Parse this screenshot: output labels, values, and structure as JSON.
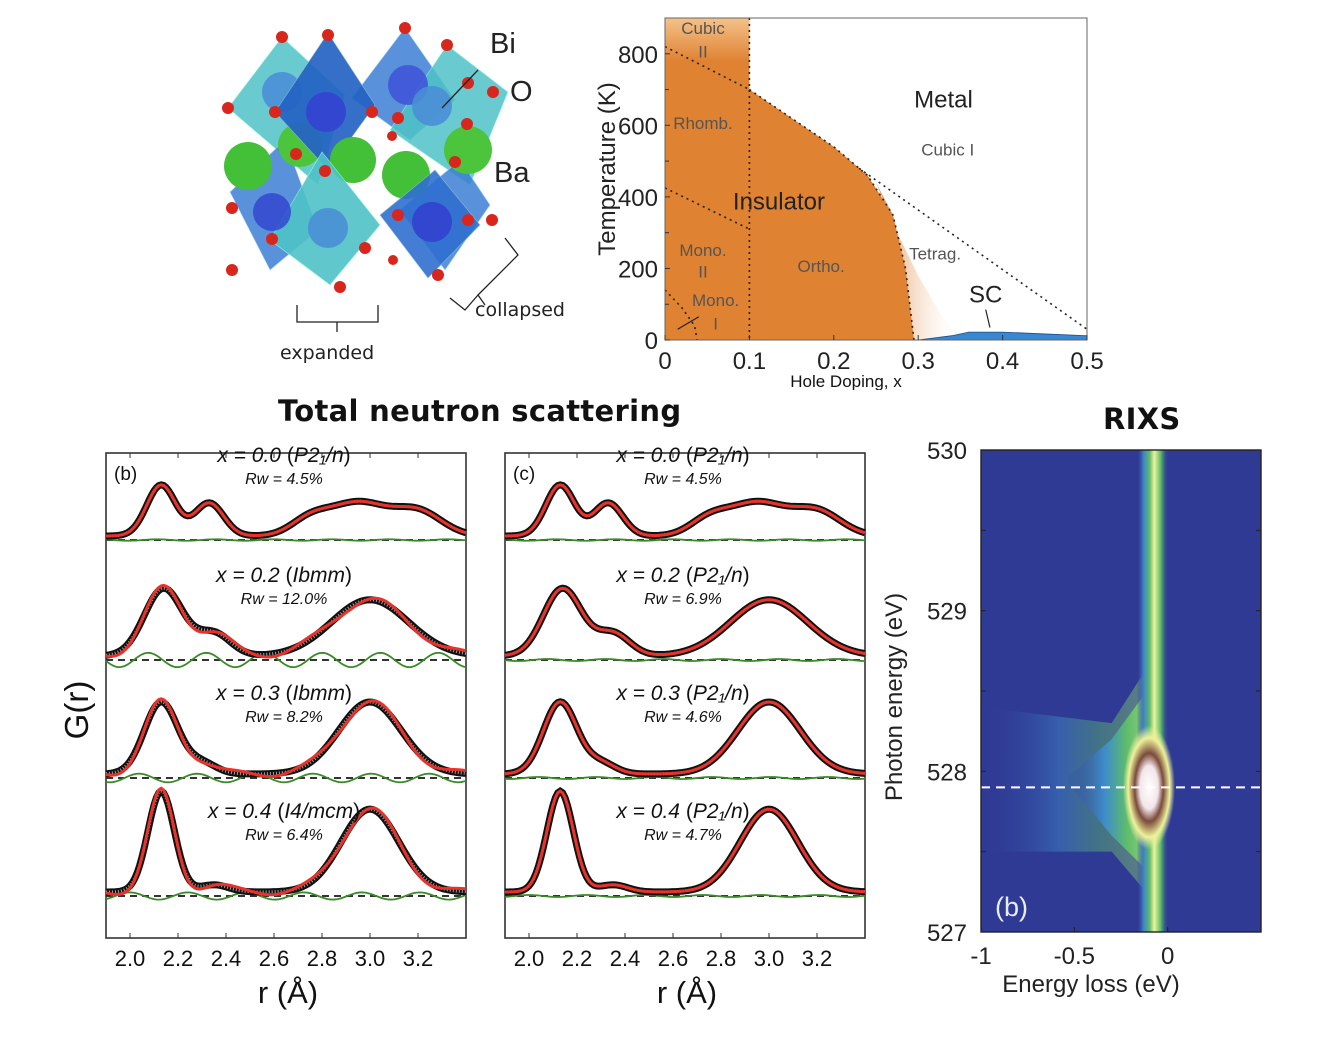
{
  "crystal": {
    "labels": {
      "bi": "Bi",
      "o": "O",
      "ba": "Ba",
      "expanded": "expanded",
      "collapsed": "collapsed"
    },
    "colors": {
      "oxygen": "#d8261c",
      "barium": "#4cc43c",
      "octa_expanded": "#4fc3c7",
      "octa_collapsed": "#2f6fd0",
      "bismuth": "#3f56d8"
    }
  },
  "chart_data": [
    {
      "id": "phase-diagram",
      "type": "area",
      "title": "",
      "xlabel": "Hole Doping, x",
      "ylabel": "Temperature (K)",
      "xlim": [
        0,
        0.5
      ],
      "ylim": [
        0,
        900
      ],
      "xticks": [
        0,
        0.1,
        0.2,
        0.3,
        0.4,
        0.5
      ],
      "xtick_labels": [
        "0",
        "0.1",
        "0.2",
        "0.3",
        "0.4",
        "0.5"
      ],
      "yticks": [
        0,
        200,
        400,
        600,
        800
      ],
      "ytick_labels": [
        "0",
        "200",
        "400",
        "600",
        "800"
      ],
      "regions": {
        "insulator_boundary": [
          [
            0,
            900
          ],
          [
            0.1,
            900
          ],
          [
            0.1,
            700
          ],
          [
            0.15,
            620
          ],
          [
            0.2,
            540
          ],
          [
            0.24,
            460
          ],
          [
            0.27,
            350
          ],
          [
            0.285,
            200
          ],
          [
            0.295,
            0
          ]
        ],
        "sc_dome": [
          [
            0.3,
            0
          ],
          [
            0.34,
            12
          ],
          [
            0.36,
            22
          ],
          [
            0.4,
            22
          ],
          [
            0.45,
            17
          ],
          [
            0.5,
            12
          ]
        ]
      },
      "dotted_lines": [
        {
          "name": "rhomb-boundary",
          "points": [
            [
              0,
              820
            ],
            [
              0.1,
              700
            ]
          ]
        },
        {
          "name": "cubic-ii-boundary",
          "points": [
            [
              0.1,
              900
            ],
            [
              0.1,
              0
            ]
          ]
        },
        {
          "name": "metal-insulator",
          "points": [
            [
              0.1,
              700
            ],
            [
              0.15,
              620
            ],
            [
              0.2,
              540
            ],
            [
              0.24,
              460
            ],
            [
              0.27,
              350
            ],
            [
              0.285,
              200
            ],
            [
              0.295,
              0
            ]
          ]
        },
        {
          "name": "cubic-i-tetrag",
          "points": [
            [
              0.23,
              480
            ],
            [
              0.5,
              30
            ]
          ]
        },
        {
          "name": "mono-ii-boundary",
          "points": [
            [
              0,
              425
            ],
            [
              0.1,
              310
            ]
          ]
        },
        {
          "name": "mono-i-boundary",
          "points": [
            [
              0,
              140
            ],
            [
              0.02,
              90
            ],
            [
              0.035,
              40
            ],
            [
              0.038,
              0
            ]
          ]
        }
      ],
      "annotations": [
        {
          "text": "Cubic",
          "x": 0.045,
          "y": 855,
          "kind": "phase"
        },
        {
          "text": "II",
          "x": 0.045,
          "y": 790,
          "kind": "phase"
        },
        {
          "text": "Rhomb.",
          "x": 0.045,
          "y": 590,
          "kind": "phase"
        },
        {
          "text": "Insulator",
          "x": 0.135,
          "y": 365,
          "kind": "major"
        },
        {
          "text": "Metal",
          "x": 0.33,
          "y": 650,
          "kind": "major"
        },
        {
          "text": "Cubic I",
          "x": 0.335,
          "y": 515,
          "kind": "phase"
        },
        {
          "text": "Mono.",
          "x": 0.045,
          "y": 235,
          "kind": "phase"
        },
        {
          "text": "II",
          "x": 0.045,
          "y": 175,
          "kind": "phase"
        },
        {
          "text": "Ortho.",
          "x": 0.185,
          "y": 190,
          "kind": "phase"
        },
        {
          "text": "Tetrag.",
          "x": 0.32,
          "y": 225,
          "kind": "phase"
        },
        {
          "text": "Mono.",
          "x": 0.06,
          "y": 95,
          "kind": "phase"
        },
        {
          "text": "I",
          "x": 0.06,
          "y": 30,
          "kind": "phase"
        },
        {
          "text": "SC",
          "x": 0.38,
          "y": 105,
          "kind": "major"
        }
      ],
      "colors": {
        "insulator": "#df8232",
        "cubic_ii_top": "#f4c28a",
        "sc": "#3a86d0"
      }
    },
    {
      "id": "pdf-panel-b",
      "type": "line",
      "panel_label": "(b)",
      "xlabel": "r (Å)",
      "ylabel": "G(r)",
      "xlim": [
        1.9,
        3.4
      ],
      "xticks": [
        2.0,
        2.2,
        2.4,
        2.6,
        2.8,
        3.0,
        3.2
      ],
      "xtick_labels": [
        "2.0",
        "2.2",
        "2.4",
        "2.6",
        "2.8",
        "3.0",
        "3.2"
      ],
      "series": [
        {
          "doping": "x = 0.0",
          "space_group": "P2₁/n",
          "rw": "Rw = 4.5%",
          "peaks": [
            [
              2.13,
              0.85,
              0.06
            ],
            [
              2.33,
              0.55,
              0.06
            ],
            [
              2.95,
              0.55,
              0.12
            ],
            [
              3.2,
              0.4,
              0.1
            ],
            [
              2.75,
              0.25,
              0.08
            ]
          ],
          "diff_amp": 0.05
        },
        {
          "doping": "x = 0.2",
          "space_group": "Ibmm",
          "rw": "Rw = 12.0%",
          "peaks": [
            [
              2.14,
              0.9,
              0.08
            ],
            [
              2.35,
              0.3,
              0.07
            ],
            [
              3.0,
              0.75,
              0.16
            ]
          ],
          "diff_amp": 0.5
        },
        {
          "doping": "x = 0.3",
          "space_group": "Ibmm",
          "rw": "Rw = 8.2%",
          "peaks": [
            [
              2.13,
              1.0,
              0.07
            ],
            [
              3.0,
              1.0,
              0.13
            ],
            [
              2.3,
              0.15,
              0.06
            ]
          ],
          "diff_amp": 0.3
        },
        {
          "doping": "x = 0.4",
          "space_group": "I4/mcm",
          "rw": "Rw = 6.4%",
          "peaks": [
            [
              2.13,
              1.4,
              0.055
            ],
            [
              3.0,
              1.15,
              0.12
            ],
            [
              2.35,
              0.1,
              0.06
            ]
          ],
          "diff_amp": 0.25
        }
      ],
      "colors": {
        "data": "#111111",
        "fit": "#e8322a",
        "diff": "#3a8a28",
        "zero": "#333333"
      }
    },
    {
      "id": "pdf-panel-c",
      "type": "line",
      "panel_label": "(c)",
      "xlabel": "r (Å)",
      "xlim": [
        1.9,
        3.4
      ],
      "xticks": [
        2.0,
        2.2,
        2.4,
        2.6,
        2.8,
        3.0,
        3.2
      ],
      "xtick_labels": [
        "2.0",
        "2.2",
        "2.4",
        "2.6",
        "2.8",
        "3.0",
        "3.2"
      ],
      "series": [
        {
          "doping": "x = 0.0",
          "space_group": "P2₁/n",
          "rw": "Rw = 4.5%",
          "peaks": [
            [
              2.13,
              0.85,
              0.06
            ],
            [
              2.33,
              0.55,
              0.06
            ],
            [
              2.95,
              0.55,
              0.12
            ],
            [
              3.2,
              0.4,
              0.1
            ],
            [
              2.75,
              0.25,
              0.08
            ]
          ],
          "diff_amp": 0.05
        },
        {
          "doping": "x = 0.2",
          "space_group": "P2₁/n",
          "rw": "Rw = 6.9%",
          "peaks": [
            [
              2.14,
              0.9,
              0.08
            ],
            [
              2.35,
              0.3,
              0.07
            ],
            [
              3.0,
              0.75,
              0.16
            ]
          ],
          "diff_amp": 0.07
        },
        {
          "doping": "x = 0.3",
          "space_group": "P2₁/n",
          "rw": "Rw = 4.6%",
          "peaks": [
            [
              2.13,
              1.0,
              0.07
            ],
            [
              3.0,
              1.0,
              0.13
            ],
            [
              2.3,
              0.15,
              0.06
            ]
          ],
          "diff_amp": 0.07
        },
        {
          "doping": "x = 0.4",
          "space_group": "P2₁/n",
          "rw": "Rw = 4.7%",
          "peaks": [
            [
              2.13,
              1.4,
              0.055
            ],
            [
              3.0,
              1.15,
              0.12
            ],
            [
              2.35,
              0.1,
              0.06
            ]
          ],
          "diff_amp": 0.07
        }
      ],
      "colors": {
        "data": "#111111",
        "fit": "#e8322a",
        "diff": "#3a8a28",
        "zero": "#333333"
      }
    },
    {
      "id": "rixs-map",
      "type": "heatmap",
      "title": "RIXS",
      "panel_label": "(b)",
      "xlabel": "Energy loss (eV)",
      "ylabel": "Photon energy (eV)",
      "xlim": [
        -1,
        0.5
      ],
      "ylim": [
        527,
        530
      ],
      "xticks": [
        -1,
        -0.5,
        0
      ],
      "xtick_labels": [
        "-1",
        "-0.5",
        "0"
      ],
      "yticks": [
        527,
        528,
        529,
        530
      ],
      "ytick_labels": [
        "527",
        "528",
        "529",
        "530"
      ],
      "elastic_line_eV": -0.08,
      "resonance_photon_energy": 527.9,
      "max_intensity_at": [
        -0.1,
        527.9
      ],
      "dashed_line_y": 527.9,
      "colormap": [
        "#2f3a94",
        "#3d7fc8",
        "#5cbc6c",
        "#eef29a",
        "#7b4a3c",
        "#ffffff"
      ]
    }
  ],
  "headings": {
    "neutron": "Total neutron scattering",
    "rixs": "RIXS"
  }
}
